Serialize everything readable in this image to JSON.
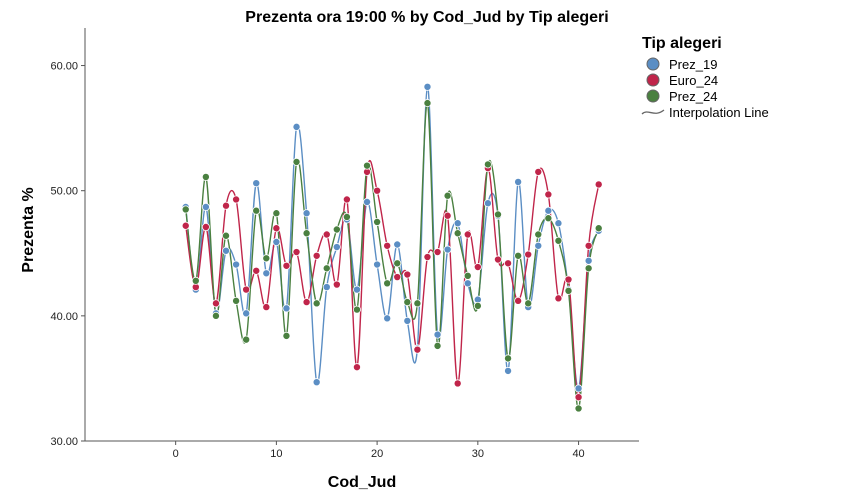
{
  "chart_data": {
    "type": "scatter",
    "title": "Prezenta ora 19:00 % by Cod_Jud by Tip alegeri",
    "xlabel": "Cod_Jud",
    "ylabel": "Prezenta %",
    "xlim": [
      -9,
      46
    ],
    "ylim": [
      30,
      63
    ],
    "x_ticks": [
      0,
      10,
      20,
      30,
      40
    ],
    "x_tick_labels": [
      "0",
      "10",
      "20",
      "30",
      "40"
    ],
    "y_ticks": [
      30,
      40,
      50,
      60
    ],
    "y_tick_labels": [
      "30.00",
      "40.00",
      "50.00",
      "60.00"
    ],
    "grid": false,
    "legend": {
      "title": "Tip alegeri",
      "position": "right",
      "line_label": "Interpolation Line"
    },
    "x": [
      1,
      2,
      3,
      4,
      5,
      6,
      7,
      8,
      9,
      10,
      11,
      12,
      13,
      14,
      15,
      16,
      17,
      18,
      19,
      20,
      21,
      22,
      23,
      24,
      25,
      26,
      27,
      28,
      29,
      30,
      31,
      32,
      33,
      34,
      35,
      36,
      37,
      38,
      39,
      40,
      41,
      42
    ],
    "series": [
      {
        "name": "Prez_19",
        "color": "#5b8ec4",
        "values": [
          48.7,
          42.1,
          48.7,
          40.2,
          45.2,
          44.1,
          40.2,
          50.6,
          43.4,
          45.9,
          40.6,
          55.1,
          48.2,
          34.7,
          42.3,
          45.5,
          47.7,
          42.1,
          49.1,
          44.1,
          39.8,
          45.7,
          39.6,
          37.4,
          58.3,
          38.5,
          45.3,
          47.4,
          42.6,
          41.3,
          49.0,
          48.0,
          35.6,
          50.7,
          40.7,
          45.6,
          48.4,
          47.4,
          42.1,
          34.2,
          44.4,
          46.8
        ]
      },
      {
        "name": "Euro_24",
        "color": "#c0254a",
        "values": [
          47.2,
          42.3,
          47.1,
          41.0,
          48.8,
          49.3,
          42.1,
          43.6,
          40.7,
          47.0,
          44.0,
          45.1,
          41.1,
          44.8,
          46.5,
          42.5,
          49.3,
          35.9,
          51.5,
          50.0,
          45.6,
          43.1,
          43.3,
          37.3,
          44.7,
          45.1,
          48.0,
          34.6,
          46.5,
          43.9,
          51.8,
          44.5,
          44.2,
          41.2,
          44.9,
          51.5,
          49.7,
          41.4,
          42.9,
          33.5,
          45.6,
          50.5
        ]
      },
      {
        "name": "Prez_24",
        "color": "#4a8040",
        "values": [
          48.5,
          42.8,
          51.1,
          40.0,
          46.4,
          41.2,
          38.1,
          48.4,
          44.6,
          48.2,
          38.4,
          52.3,
          46.6,
          41.0,
          43.8,
          46.9,
          47.9,
          40.5,
          52.0,
          47.5,
          42.6,
          44.2,
          41.1,
          41.0,
          57.0,
          37.6,
          49.6,
          46.6,
          43.2,
          40.8,
          52.1,
          48.1,
          36.6,
          44.8,
          41.0,
          46.5,
          47.8,
          46.0,
          42.0,
          32.6,
          43.8,
          47.0
        ]
      }
    ]
  }
}
